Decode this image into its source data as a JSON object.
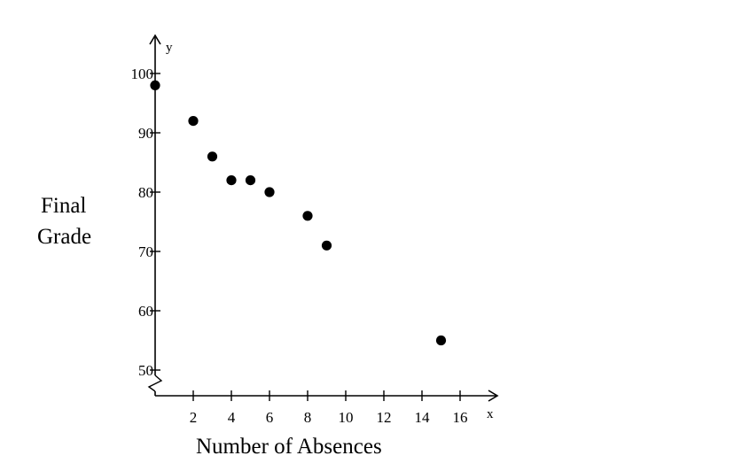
{
  "chart_data": {
    "type": "scatter",
    "title": "",
    "xlabel": "Number of Absences",
    "ylabel_lines": [
      "Final",
      "Grade"
    ],
    "x_axis_var": "x",
    "y_axis_var": "y",
    "xlim": [
      0,
      17
    ],
    "ylim": [
      50,
      100
    ],
    "xticks": [
      2,
      4,
      6,
      8,
      10,
      12,
      14,
      16
    ],
    "xtick_labels": [
      "2",
      "4",
      "6",
      "8",
      "10",
      "12",
      "14",
      "16"
    ],
    "yticks": [
      50,
      60,
      70,
      80,
      90,
      100
    ],
    "ytick_labels": [
      "50",
      "60",
      "70",
      "80",
      "90",
      "100"
    ],
    "y_axis_break": true,
    "grid": false,
    "legend": "none",
    "marker_color": "#000000",
    "points": [
      {
        "x": 0,
        "y": 98
      },
      {
        "x": 2,
        "y": 92
      },
      {
        "x": 3,
        "y": 86
      },
      {
        "x": 4,
        "y": 82
      },
      {
        "x": 5,
        "y": 82
      },
      {
        "x": 6,
        "y": 80
      },
      {
        "x": 8,
        "y": 76
      },
      {
        "x": 9,
        "y": 71
      },
      {
        "x": 15,
        "y": 55
      }
    ]
  }
}
